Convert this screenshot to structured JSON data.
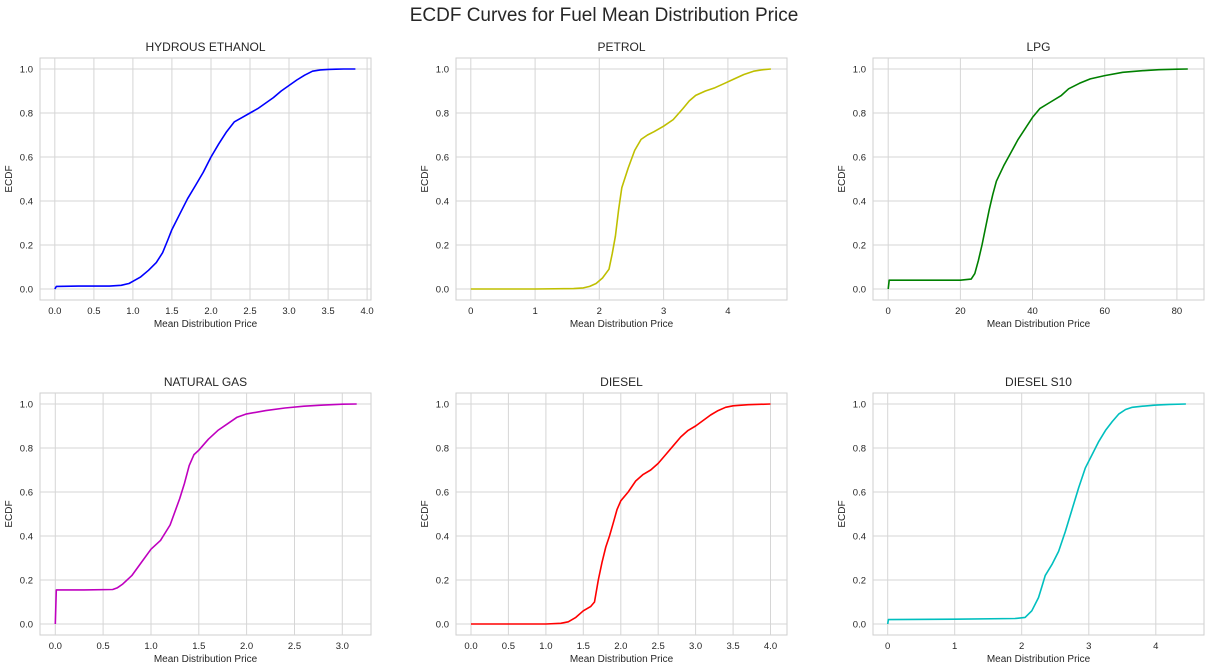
{
  "figure": {
    "title": "ECDF Curves for Fuel Mean Distribution Price"
  },
  "chart_data": [
    {
      "type": "line",
      "title": "HYDROUS ETHANOL",
      "xlabel": "Mean Distribution Price",
      "ylabel": "ECDF",
      "color": "#0000ff",
      "xlim": [
        -0.19,
        4.05
      ],
      "ylim": [
        -0.05,
        1.05
      ],
      "xticks": [
        0,
        0.5,
        1,
        1.5,
        2,
        2.5,
        3,
        3.5,
        4
      ],
      "xtick_labels": [
        "0.0",
        "0.5",
        "1.0",
        "1.5",
        "2.0",
        "2.5",
        "3.0",
        "3.5",
        "4.0"
      ],
      "yticks": [
        0,
        0.2,
        0.4,
        0.6,
        0.8,
        1.0
      ],
      "ytick_labels": [
        "0.0",
        "0.2",
        "0.4",
        "0.6",
        "0.8",
        "1.0"
      ],
      "grid": true,
      "series": [
        {
          "x": [
            0,
            0.02,
            0.3,
            0.7,
            0.85,
            0.95,
            1.0,
            1.1,
            1.2,
            1.3,
            1.38,
            1.45,
            1.5,
            1.6,
            1.7,
            1.8,
            1.9,
            2.0,
            2.1,
            2.2,
            2.3,
            2.4,
            2.5,
            2.6,
            2.7,
            2.8,
            2.9,
            3.0,
            3.1,
            3.2,
            3.3,
            3.4,
            3.5,
            3.6,
            3.7,
            3.85
          ],
          "y": [
            0.0,
            0.012,
            0.013,
            0.013,
            0.017,
            0.025,
            0.035,
            0.055,
            0.085,
            0.12,
            0.165,
            0.225,
            0.27,
            0.34,
            0.41,
            0.47,
            0.53,
            0.6,
            0.66,
            0.715,
            0.76,
            0.78,
            0.8,
            0.82,
            0.845,
            0.87,
            0.9,
            0.925,
            0.95,
            0.972,
            0.99,
            0.996,
            0.998,
            0.999,
            1.0,
            1.0
          ]
        }
      ]
    },
    {
      "type": "line",
      "title": "PETROL",
      "xlabel": "Mean Distribution Price",
      "ylabel": "ECDF",
      "color": "#bfbf00",
      "xlim": [
        -0.23,
        4.92
      ],
      "ylim": [
        -0.05,
        1.05
      ],
      "xticks": [
        0,
        1,
        2,
        3,
        4
      ],
      "xtick_labels": [
        "0",
        "1",
        "2",
        "3",
        "4"
      ],
      "yticks": [
        0,
        0.2,
        0.4,
        0.6,
        0.8,
        1.0
      ],
      "ytick_labels": [
        "0.0",
        "0.2",
        "0.4",
        "0.6",
        "0.8",
        "1.0"
      ],
      "grid": true,
      "series": [
        {
          "x": [
            0,
            1.0,
            1.6,
            1.75,
            1.85,
            1.95,
            2.05,
            2.15,
            2.2,
            2.25,
            2.3,
            2.35,
            2.45,
            2.55,
            2.65,
            2.75,
            2.85,
            3.0,
            3.15,
            3.3,
            3.4,
            3.5,
            3.65,
            3.8,
            3.95,
            4.1,
            4.25,
            4.4,
            4.55,
            4.67
          ],
          "y": [
            0.0,
            0.0,
            0.002,
            0.005,
            0.012,
            0.025,
            0.05,
            0.09,
            0.16,
            0.24,
            0.36,
            0.46,
            0.55,
            0.63,
            0.68,
            0.7,
            0.715,
            0.74,
            0.77,
            0.82,
            0.855,
            0.88,
            0.9,
            0.915,
            0.935,
            0.955,
            0.975,
            0.99,
            0.997,
            1.0
          ]
        }
      ]
    },
    {
      "type": "line",
      "title": "LPG",
      "xlabel": "Mean Distribution Price",
      "ylabel": "ECDF",
      "color": "#008000",
      "xlim": [
        -4.2,
        87.5
      ],
      "ylim": [
        -0.05,
        1.05
      ],
      "xticks": [
        0,
        20,
        40,
        60,
        80
      ],
      "xtick_labels": [
        "0",
        "20",
        "40",
        "60",
        "80"
      ],
      "yticks": [
        0,
        0.2,
        0.4,
        0.6,
        0.8,
        1.0
      ],
      "ytick_labels": [
        "0.0",
        "0.2",
        "0.4",
        "0.6",
        "0.8",
        "1.0"
      ],
      "grid": true,
      "series": [
        {
          "x": [
            0,
            0.3,
            10,
            20,
            23,
            24,
            25,
            26,
            27,
            28,
            29,
            30,
            32,
            34,
            36,
            38,
            40,
            42,
            45,
            48,
            50,
            53,
            56,
            60,
            65,
            70,
            75,
            80,
            83
          ],
          "y": [
            0.0,
            0.04,
            0.04,
            0.04,
            0.045,
            0.07,
            0.13,
            0.2,
            0.28,
            0.36,
            0.43,
            0.49,
            0.56,
            0.62,
            0.68,
            0.73,
            0.78,
            0.82,
            0.85,
            0.88,
            0.91,
            0.935,
            0.955,
            0.97,
            0.985,
            0.992,
            0.997,
            0.999,
            1.0
          ]
        }
      ]
    },
    {
      "type": "line",
      "title": "NATURAL GAS",
      "xlabel": "Mean Distribution Price",
      "ylabel": "ECDF",
      "color": "#bf00bf",
      "xlim": [
        -0.16,
        3.3
      ],
      "ylim": [
        -0.05,
        1.05
      ],
      "xticks": [
        0,
        0.5,
        1,
        1.5,
        2,
        2.5,
        3
      ],
      "xtick_labels": [
        "0.0",
        "0.5",
        "1.0",
        "1.5",
        "2.0",
        "2.5",
        "3.0"
      ],
      "yticks": [
        0,
        0.2,
        0.4,
        0.6,
        0.8,
        1.0
      ],
      "ytick_labels": [
        "0.0",
        "0.2",
        "0.4",
        "0.6",
        "0.8",
        "1.0"
      ],
      "grid": true,
      "series": [
        {
          "x": [
            0,
            0.01,
            0.3,
            0.6,
            0.65,
            0.7,
            0.8,
            0.9,
            1.0,
            1.1,
            1.2,
            1.3,
            1.35,
            1.4,
            1.45,
            1.5,
            1.6,
            1.7,
            1.8,
            1.9,
            2.0,
            2.2,
            2.4,
            2.6,
            2.8,
            3.0,
            3.15
          ],
          "y": [
            0.0,
            0.155,
            0.155,
            0.157,
            0.165,
            0.18,
            0.22,
            0.28,
            0.34,
            0.38,
            0.45,
            0.57,
            0.64,
            0.72,
            0.77,
            0.79,
            0.84,
            0.88,
            0.91,
            0.94,
            0.955,
            0.97,
            0.982,
            0.99,
            0.995,
            0.999,
            1.0
          ]
        }
      ]
    },
    {
      "type": "line",
      "title": "DIESEL",
      "xlabel": "Mean Distribution Price",
      "ylabel": "ECDF",
      "color": "#ff0000",
      "xlim": [
        -0.2,
        4.22
      ],
      "ylim": [
        -0.05,
        1.05
      ],
      "xticks": [
        0,
        0.5,
        1,
        1.5,
        2,
        2.5,
        3,
        3.5,
        4
      ],
      "xtick_labels": [
        "0.0",
        "0.5",
        "1.0",
        "1.5",
        "2.0",
        "2.5",
        "3.0",
        "3.5",
        "4.0"
      ],
      "yticks": [
        0,
        0.2,
        0.4,
        0.6,
        0.8,
        1.0
      ],
      "ytick_labels": [
        "0.0",
        "0.2",
        "0.4",
        "0.6",
        "0.8",
        "1.0"
      ],
      "grid": true,
      "series": [
        {
          "x": [
            0,
            1.0,
            1.2,
            1.3,
            1.4,
            1.5,
            1.6,
            1.65,
            1.7,
            1.75,
            1.8,
            1.85,
            1.9,
            1.95,
            2.0,
            2.1,
            2.2,
            2.3,
            2.4,
            2.5,
            2.6,
            2.7,
            2.8,
            2.9,
            3.0,
            3.1,
            3.2,
            3.3,
            3.4,
            3.5,
            3.7,
            4.0
          ],
          "y": [
            0.0,
            0.0,
            0.003,
            0.01,
            0.03,
            0.06,
            0.08,
            0.1,
            0.2,
            0.28,
            0.35,
            0.4,
            0.46,
            0.52,
            0.56,
            0.6,
            0.65,
            0.68,
            0.7,
            0.73,
            0.77,
            0.81,
            0.85,
            0.88,
            0.9,
            0.925,
            0.95,
            0.97,
            0.985,
            0.992,
            0.997,
            1.0
          ]
        }
      ]
    },
    {
      "type": "line",
      "title": "DIESEL S10",
      "xlabel": "Mean Distribution Price",
      "ylabel": "ECDF",
      "color": "#00bfbf",
      "xlim": [
        -0.22,
        4.72
      ],
      "ylim": [
        -0.05,
        1.05
      ],
      "xticks": [
        0,
        1,
        2,
        3,
        4
      ],
      "xtick_labels": [
        "0",
        "1",
        "2",
        "3",
        "4"
      ],
      "yticks": [
        0,
        0.2,
        0.4,
        0.6,
        0.8,
        1.0
      ],
      "ytick_labels": [
        "0.0",
        "0.2",
        "0.4",
        "0.6",
        "0.8",
        "1.0"
      ],
      "grid": true,
      "series": [
        {
          "x": [
            0,
            0.01,
            1.0,
            1.9,
            2.05,
            2.15,
            2.25,
            2.3,
            2.35,
            2.45,
            2.55,
            2.65,
            2.75,
            2.85,
            2.95,
            3.05,
            3.15,
            3.25,
            3.35,
            3.45,
            3.55,
            3.65,
            3.8,
            4.0,
            4.2,
            4.45
          ],
          "y": [
            0.0,
            0.02,
            0.022,
            0.025,
            0.03,
            0.06,
            0.12,
            0.17,
            0.22,
            0.27,
            0.33,
            0.42,
            0.52,
            0.62,
            0.71,
            0.77,
            0.83,
            0.88,
            0.92,
            0.955,
            0.975,
            0.985,
            0.99,
            0.995,
            0.998,
            1.0
          ]
        }
      ]
    }
  ]
}
